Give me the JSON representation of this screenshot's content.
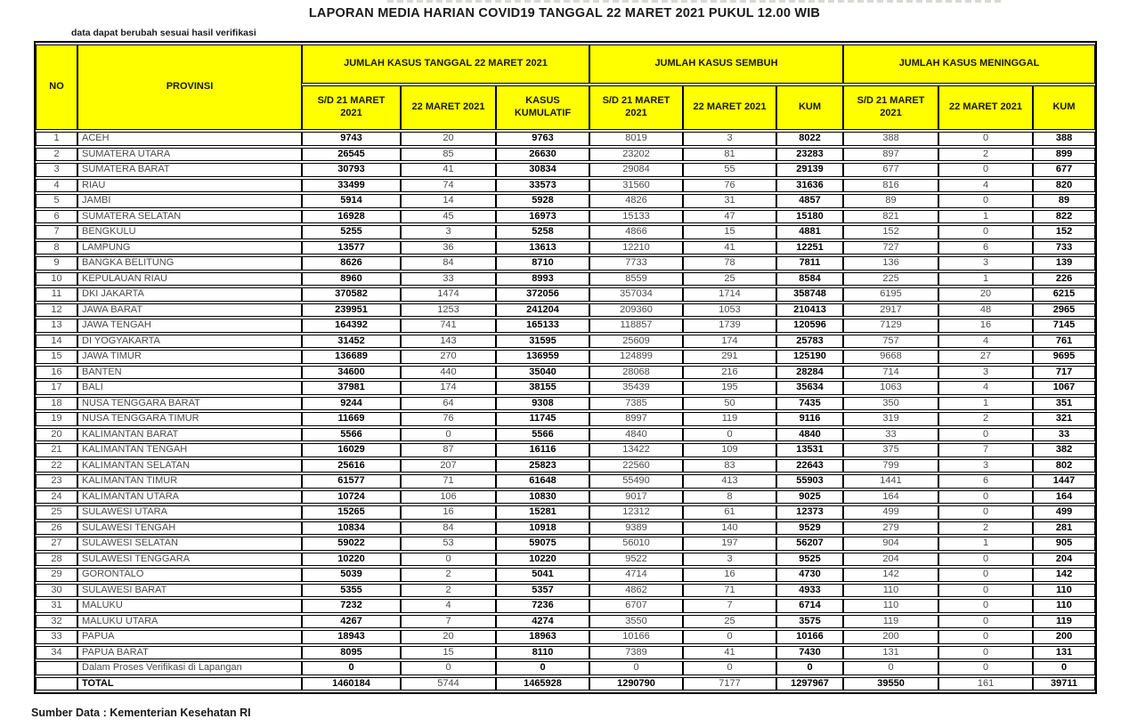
{
  "title": "LAPORAN MEDIA HARIAN COVID19 TANGGAL 22 MARET 2021 PUKUL 12.00 WIB",
  "note": "data dapat berubah sesuai hasil verifikasi",
  "source": "Sumber Data : Kementerian Kesehatan RI",
  "colors": {
    "header_bg": "#FFFF00",
    "border": "#000000",
    "bold_value_text": "#000000",
    "regular_value_text": "#4A4A4A"
  },
  "table": {
    "columns": {
      "no": "NO",
      "provinsi": "PROVINSI",
      "groups": [
        {
          "label": "JUMLAH KASUS TANGGAL 22 MARET 2021",
          "sub": [
            "S/D 21 MARET 2021",
            "22 MARET 2021",
            "KASUS KUMULATIF"
          ]
        },
        {
          "label": "JUMLAH KASUS SEMBUH",
          "sub": [
            "S/D 21 MARET 2021",
            "22 MARET 2021",
            "KUM"
          ]
        },
        {
          "label": "JUMLAH KASUS MENINGGAL",
          "sub": [
            "S/D 21 MARET 2021",
            "22 MARET 2021",
            "KUM"
          ]
        }
      ]
    },
    "bold_columns_data_rows": [
      1,
      0,
      1,
      0,
      0,
      1,
      0,
      0,
      1
    ],
    "bold_columns_total_row": [
      1,
      0,
      1,
      1,
      0,
      1,
      1,
      0,
      1
    ],
    "rows": [
      {
        "no": "1",
        "provinsi": "ACEH",
        "values": [
          9743,
          20,
          9763,
          8019,
          3,
          8022,
          388,
          0,
          388
        ]
      },
      {
        "no": "2",
        "provinsi": "SUMATERA UTARA",
        "values": [
          26545,
          85,
          26630,
          23202,
          81,
          23283,
          897,
          2,
          899
        ]
      },
      {
        "no": "3",
        "provinsi": "SUMATERA BARAT",
        "values": [
          30793,
          41,
          30834,
          29084,
          55,
          29139,
          677,
          0,
          677
        ]
      },
      {
        "no": "4",
        "provinsi": "RIAU",
        "values": [
          33499,
          74,
          33573,
          31560,
          76,
          31636,
          816,
          4,
          820
        ]
      },
      {
        "no": "5",
        "provinsi": "JAMBI",
        "values": [
          5914,
          14,
          5928,
          4826,
          31,
          4857,
          89,
          0,
          89
        ]
      },
      {
        "no": "6",
        "provinsi": "SUMATERA SELATAN",
        "values": [
          16928,
          45,
          16973,
          15133,
          47,
          15180,
          821,
          1,
          822
        ]
      },
      {
        "no": "7",
        "provinsi": "BENGKULU",
        "values": [
          5255,
          3,
          5258,
          4866,
          15,
          4881,
          152,
          0,
          152
        ]
      },
      {
        "no": "8",
        "provinsi": "LAMPUNG",
        "values": [
          13577,
          36,
          13613,
          12210,
          41,
          12251,
          727,
          6,
          733
        ]
      },
      {
        "no": "9",
        "provinsi": "BANGKA BELITUNG",
        "values": [
          8626,
          84,
          8710,
          7733,
          78,
          7811,
          136,
          3,
          139
        ]
      },
      {
        "no": "10",
        "provinsi": "KEPULAUAN RIAU",
        "values": [
          8960,
          33,
          8993,
          8559,
          25,
          8584,
          225,
          1,
          226
        ]
      },
      {
        "no": "11",
        "provinsi": "DKI JAKARTA",
        "values": [
          370582,
          1474,
          372056,
          357034,
          1714,
          358748,
          6195,
          20,
          6215
        ]
      },
      {
        "no": "12",
        "provinsi": "JAWA BARAT",
        "values": [
          239951,
          1253,
          241204,
          209360,
          1053,
          210413,
          2917,
          48,
          2965
        ]
      },
      {
        "no": "13",
        "provinsi": "JAWA TENGAH",
        "values": [
          164392,
          741,
          165133,
          118857,
          1739,
          120596,
          7129,
          16,
          7145
        ]
      },
      {
        "no": "14",
        "provinsi": "DI YOGYAKARTA",
        "values": [
          31452,
          143,
          31595,
          25609,
          174,
          25783,
          757,
          4,
          761
        ]
      },
      {
        "no": "15",
        "provinsi": "JAWA TIMUR",
        "values": [
          136689,
          270,
          136959,
          124899,
          291,
          125190,
          9668,
          27,
          9695
        ]
      },
      {
        "no": "16",
        "provinsi": "BANTEN",
        "values": [
          34600,
          440,
          35040,
          28068,
          216,
          28284,
          714,
          3,
          717
        ]
      },
      {
        "no": "17",
        "provinsi": "BALI",
        "values": [
          37981,
          174,
          38155,
          35439,
          195,
          35634,
          1063,
          4,
          1067
        ]
      },
      {
        "no": "18",
        "provinsi": "NUSA TENGGARA BARAT",
        "values": [
          9244,
          64,
          9308,
          7385,
          50,
          7435,
          350,
          1,
          351
        ]
      },
      {
        "no": "19",
        "provinsi": "NUSA TENGGARA TIMUR",
        "values": [
          11669,
          76,
          11745,
          8997,
          119,
          9116,
          319,
          2,
          321
        ]
      },
      {
        "no": "20",
        "provinsi": "KALIMANTAN BARAT",
        "values": [
          5566,
          0,
          5566,
          4840,
          0,
          4840,
          33,
          0,
          33
        ]
      },
      {
        "no": "21",
        "provinsi": "KALIMANTAN TENGAH",
        "values": [
          16029,
          87,
          16116,
          13422,
          109,
          13531,
          375,
          7,
          382
        ]
      },
      {
        "no": "22",
        "provinsi": "KALIMANTAN SELATAN",
        "values": [
          25616,
          207,
          25823,
          22560,
          83,
          22643,
          799,
          3,
          802
        ]
      },
      {
        "no": "23",
        "provinsi": "KALIMANTAN TIMUR",
        "values": [
          61577,
          71,
          61648,
          55490,
          413,
          55903,
          1441,
          6,
          1447
        ]
      },
      {
        "no": "24",
        "provinsi": "KALIMANTAN UTARA",
        "values": [
          10724,
          106,
          10830,
          9017,
          8,
          9025,
          164,
          0,
          164
        ]
      },
      {
        "no": "25",
        "provinsi": "SULAWESI UTARA",
        "values": [
          15265,
          16,
          15281,
          12312,
          61,
          12373,
          499,
          0,
          499
        ]
      },
      {
        "no": "26",
        "provinsi": "SULAWESI TENGAH",
        "values": [
          10834,
          84,
          10918,
          9389,
          140,
          9529,
          279,
          2,
          281
        ]
      },
      {
        "no": "27",
        "provinsi": "SULAWESI SELATAN",
        "values": [
          59022,
          53,
          59075,
          56010,
          197,
          56207,
          904,
          1,
          905
        ]
      },
      {
        "no": "28",
        "provinsi": "SULAWESI TENGGARA",
        "values": [
          10220,
          0,
          10220,
          9522,
          3,
          9525,
          204,
          0,
          204
        ]
      },
      {
        "no": "29",
        "provinsi": "GORONTALO",
        "values": [
          5039,
          2,
          5041,
          4714,
          16,
          4730,
          142,
          0,
          142
        ]
      },
      {
        "no": "30",
        "provinsi": "SULAWESI BARAT",
        "values": [
          5355,
          2,
          5357,
          4862,
          71,
          4933,
          110,
          0,
          110
        ]
      },
      {
        "no": "31",
        "provinsi": "MALUKU",
        "values": [
          7232,
          4,
          7236,
          6707,
          7,
          6714,
          110,
          0,
          110
        ]
      },
      {
        "no": "32",
        "provinsi": "MALUKU UTARA",
        "values": [
          4267,
          7,
          4274,
          3550,
          25,
          3575,
          119,
          0,
          119
        ]
      },
      {
        "no": "33",
        "provinsi": "PAPUA",
        "values": [
          18943,
          20,
          18963,
          10166,
          0,
          10166,
          200,
          0,
          200
        ]
      },
      {
        "no": "34",
        "provinsi": "PAPUA BARAT",
        "values": [
          8095,
          15,
          8110,
          7389,
          41,
          7430,
          131,
          0,
          131
        ]
      },
      {
        "no": "",
        "provinsi": "Dalam Proses Verifikasi di Lapangan",
        "values": [
          0,
          0,
          0,
          0,
          0,
          0,
          0,
          0,
          0
        ]
      }
    ],
    "total_row": {
      "no": "",
      "provinsi": "TOTAL",
      "values": [
        1460184,
        5744,
        1465928,
        1290790,
        7177,
        1297967,
        39550,
        161,
        39711
      ]
    }
  }
}
